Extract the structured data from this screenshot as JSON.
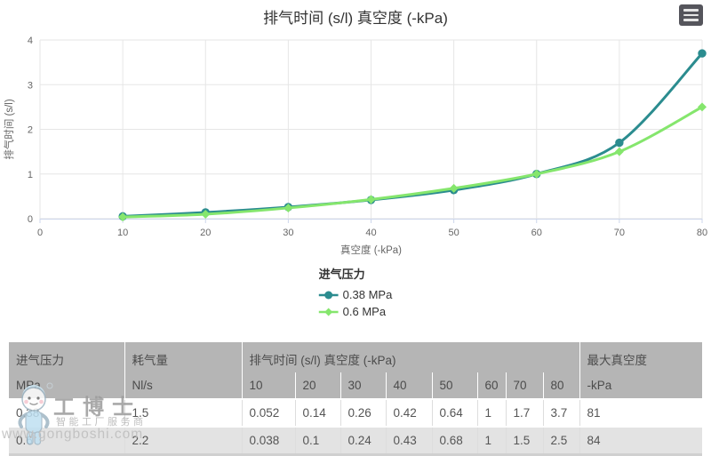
{
  "chart_data": {
    "type": "line",
    "title": "排气时间 (s/l) 真空度 (-kPa)",
    "xlabel": "真空度 (-kPa)",
    "ylabel": "排气时间 (s/l)",
    "x": [
      10,
      20,
      30,
      40,
      50,
      60,
      70,
      80
    ],
    "series": [
      {
        "name": "0.38 MPa",
        "color": "#2b8c8f",
        "marker": "circle",
        "values": [
          0.052,
          0.14,
          0.26,
          0.42,
          0.64,
          1,
          1.7,
          3.7
        ]
      },
      {
        "name": "0.6 MPa",
        "color": "#85e66d",
        "marker": "diamond",
        "values": [
          0.038,
          0.1,
          0.24,
          0.43,
          0.68,
          1,
          1.5,
          2.5
        ]
      }
    ],
    "xlim": [
      0,
      80
    ],
    "ylim": [
      0,
      4
    ],
    "xticks": [
      0,
      10,
      20,
      30,
      40,
      50,
      60,
      70,
      80
    ],
    "yticks": [
      0,
      1,
      2,
      3,
      4
    ],
    "grid": true,
    "legend_title": "进气压力",
    "legend_position": "bottom-center"
  },
  "export_menu": {
    "tooltip": "menu"
  },
  "table": {
    "header_row1": [
      {
        "label": "进气压力",
        "span": 1
      },
      {
        "label": "耗气量",
        "span": 1
      },
      {
        "label": "排气时间 (s/l) 真空度 (-kPa)",
        "span": 8
      },
      {
        "label": "最大真空度",
        "span": 1
      }
    ],
    "header_row2": [
      "MPa",
      "Nl/s",
      "10",
      "20",
      "30",
      "40",
      "50",
      "60",
      "70",
      "80",
      "-kPa"
    ],
    "rows": [
      [
        "0.38",
        "1.5",
        "0.052",
        "0.14",
        "0.26",
        "0.42",
        "0.64",
        "1",
        "1.7",
        "3.7",
        "81"
      ],
      [
        "0.6",
        "2.2",
        "0.038",
        "0.1",
        "0.24",
        "0.43",
        "0.68",
        "1",
        "1.5",
        "2.5",
        "84"
      ]
    ]
  },
  "watermark": {
    "brand": "工博士",
    "tagline": "智能工厂服务商",
    "url": "www.gongboshi.com"
  },
  "colors": {
    "series_teal": "#2b8c8f",
    "series_green": "#85e66d",
    "gridline": "#e6e6e6",
    "axis_line": "#ccd6eb",
    "tick_text": "#666666",
    "title_text": "#333333",
    "table_header_bg": "#b5b5b5",
    "table_alt_row_bg": "#e3e3e3"
  }
}
